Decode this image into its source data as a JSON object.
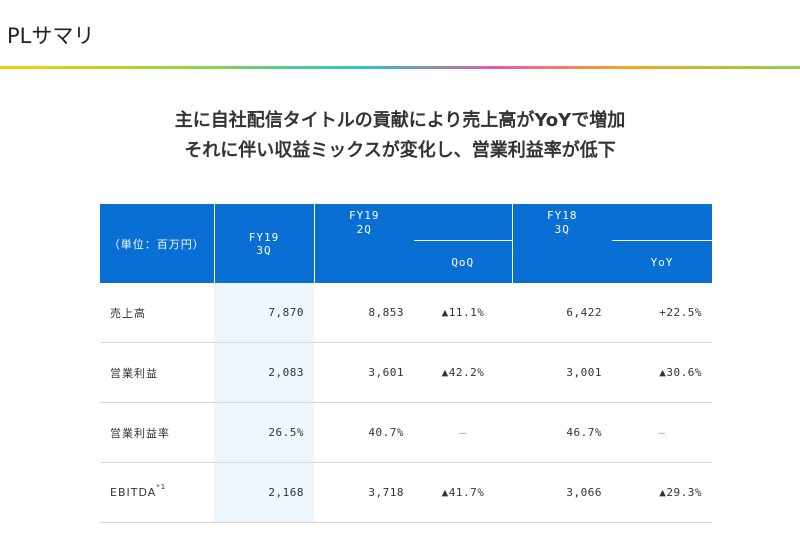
{
  "page": {
    "title": "PLサマリ",
    "headline_1": "主に自社配信タイトルの貢献により売上高がYoYで増加",
    "headline_2": "それに伴い収益ミックスが変化し、営業利益率が低下"
  },
  "table": {
    "unit_label": "（単位：百万円）",
    "headers": {
      "fy19_3q": "FY19\n3Q",
      "fy19_2q": "FY19\n2Q",
      "qoq": "QoQ",
      "fy18_3q": "FY18\n3Q",
      "yoy": "YoY"
    },
    "rows": [
      {
        "label": "売上高",
        "note": "",
        "fy19_3q": "7,870",
        "fy19_2q": "8,853",
        "qoq": "▲11.1%",
        "fy18_3q": "6,422",
        "yoy": "+22.5%"
      },
      {
        "label": "営業利益",
        "note": "",
        "fy19_3q": "2,083",
        "fy19_2q": "3,601",
        "qoq": "▲42.2%",
        "fy18_3q": "3,001",
        "yoy": "▲30.6%"
      },
      {
        "label": "営業利益率",
        "note": "",
        "fy19_3q": "26.5%",
        "fy19_2q": "40.7%",
        "qoq": "–",
        "fy18_3q": "46.7%",
        "yoy": "–"
      },
      {
        "label": "EBITDA",
        "note": "*1",
        "fy19_3q": "2,168",
        "fy19_2q": "3,718",
        "qoq": "▲41.7%",
        "fy18_3q": "3,066",
        "yoy": "▲29.3%"
      }
    ]
  },
  "colors": {
    "header_bg": "#0a6fd4",
    "highlight_col": "#eef7fd"
  }
}
